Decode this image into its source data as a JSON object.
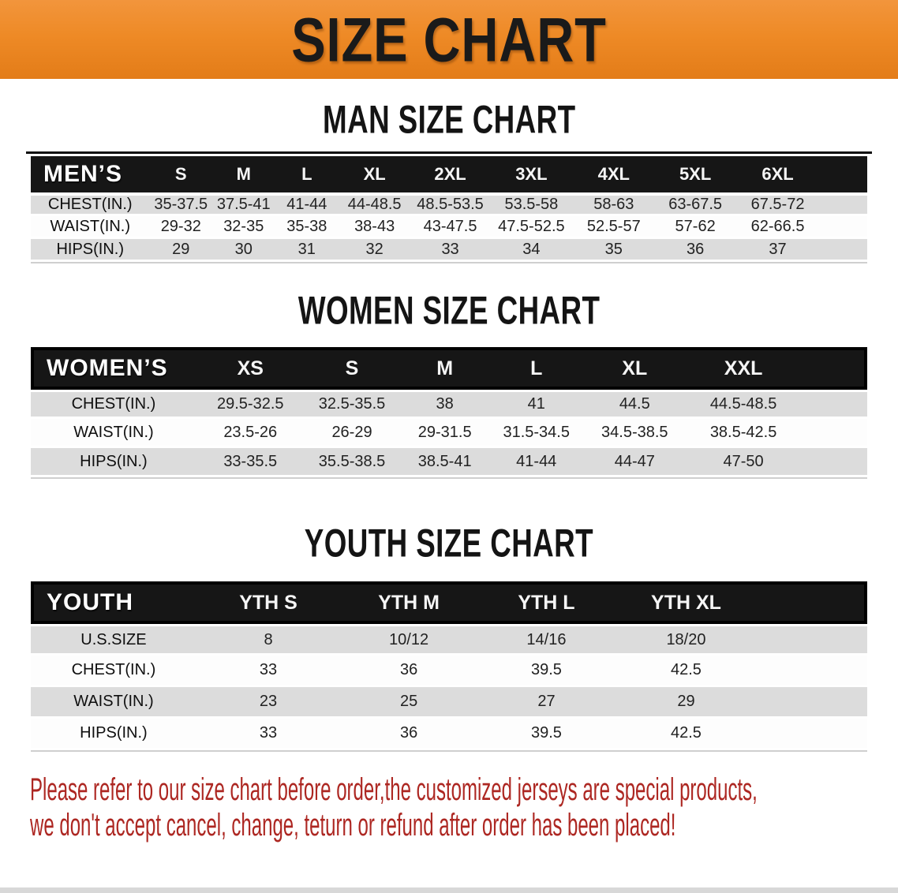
{
  "banner": {
    "title": "SIZE CHART"
  },
  "colors": {
    "banner_bg": "#EE8A26",
    "header_bar": "#161616",
    "row_stripe": "#DCDCDC",
    "disclaimer_text": "#AD2722"
  },
  "sections": [
    {
      "title": "MAN SIZE CHART",
      "table": {
        "header_label": "MEN’S",
        "sizes": [
          "S",
          "M",
          "L",
          "XL",
          "2XL",
          "3XL",
          "4XL",
          "5XL",
          "6XL"
        ],
        "rows": [
          {
            "label": "CHEST(IN.)",
            "values": [
              "35-37.5",
              "37.5-41",
              "41-44",
              "44-48.5",
              "48.5-53.5",
              "53.5-58",
              "58-63",
              "63-67.5",
              "67.5-72"
            ]
          },
          {
            "label": "WAIST(IN.)",
            "values": [
              "29-32",
              "32-35",
              "35-38",
              "38-43",
              "43-47.5",
              "47.5-52.5",
              "52.5-57",
              "57-62",
              "62-66.5"
            ]
          },
          {
            "label": "HIPS(IN.)",
            "values": [
              "29",
              "30",
              "31",
              "32",
              "33",
              "34",
              "35",
              "36",
              "37"
            ]
          }
        ]
      }
    },
    {
      "title": "WOMEN SIZE CHART",
      "table": {
        "header_label": "WOMEN’S",
        "sizes": [
          "XS",
          "S",
          "M",
          "L",
          "XL",
          "XXL"
        ],
        "rows": [
          {
            "label": "CHEST(IN.)",
            "values": [
              "29.5-32.5",
              "32.5-35.5",
              "38",
              "41",
              "44.5",
              "44.5-48.5"
            ]
          },
          {
            "label": "WAIST(IN.)",
            "values": [
              "23.5-26",
              "26-29",
              "29-31.5",
              "31.5-34.5",
              "34.5-38.5",
              "38.5-42.5"
            ]
          },
          {
            "label": "HIPS(IN.)",
            "values": [
              "33-35.5",
              "35.5-38.5",
              "38.5-41",
              "41-44",
              "44-47",
              "47-50"
            ]
          }
        ]
      }
    },
    {
      "title": "YOUTH SIZE CHART",
      "table": {
        "header_label": "YOUTH",
        "sizes": [
          "YTH S",
          "YTH M",
          "YTH L",
          "YTH XL"
        ],
        "rows": [
          {
            "label": "U.S.SIZE",
            "values": [
              "8",
              "10/12",
              "14/16",
              "18/20"
            ]
          },
          {
            "label": "CHEST(IN.)",
            "values": [
              "33",
              "36",
              "39.5",
              "42.5"
            ]
          },
          {
            "label": "WAIST(IN.)",
            "values": [
              "23",
              "25",
              "27",
              "29"
            ]
          },
          {
            "label": "HIPS(IN.)",
            "values": [
              "33",
              "36",
              "39.5",
              "42.5"
            ]
          }
        ]
      }
    }
  ],
  "disclaimer": {
    "line1": "Please refer to our size chart before order,the customized jerseys are special products,",
    "line2": "we don't accept cancel, change, teturn or refund after order has been placed!"
  }
}
